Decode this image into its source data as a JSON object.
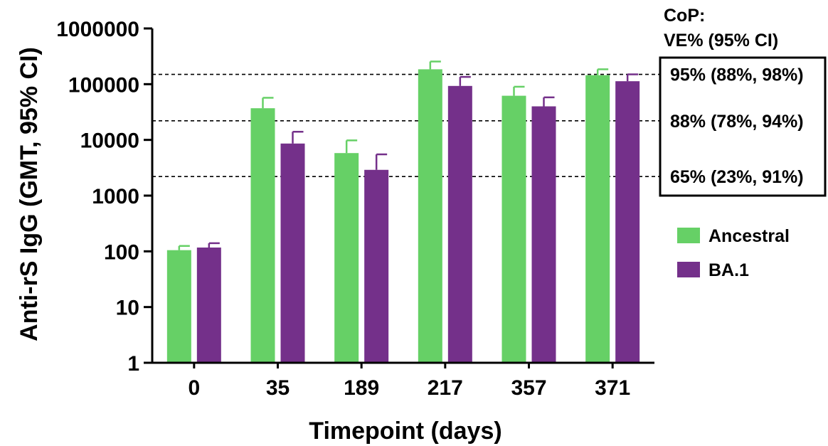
{
  "chart_data": {
    "type": "bar",
    "xlabel": "Timepoint (days)",
    "ylabel": "Anti-rS IgG (GMT, 95% CI)",
    "yscale": "log",
    "ylim": [
      1,
      1000000
    ],
    "yticks": [
      {
        "value": 1,
        "label": "1"
      },
      {
        "value": 10,
        "label": "10"
      },
      {
        "value": 100,
        "label": "100"
      },
      {
        "value": 1000,
        "label": "1000"
      },
      {
        "value": 10000,
        "label": "10000"
      },
      {
        "value": 100000,
        "label": "100000"
      },
      {
        "value": 1000000,
        "label": "1000000"
      }
    ],
    "categories": [
      "0",
      "35",
      "189",
      "217",
      "357",
      "371"
    ],
    "series": [
      {
        "name": "Ancestral",
        "color": "#66d066",
        "values": [
          105,
          37000,
          5800,
          185000,
          62000,
          145000
        ],
        "upper_ci": [
          125,
          57000,
          9800,
          255000,
          90000,
          185000
        ]
      },
      {
        "name": "BA.1",
        "color": "#74308a",
        "values": [
          117,
          8600,
          2900,
          93000,
          40000,
          113000
        ],
        "upper_ci": [
          140,
          14000,
          5500,
          135000,
          58000,
          150000
        ]
      }
    ],
    "reference_lines": [
      {
        "value": 150000,
        "label": "95% (88%, 98%)"
      },
      {
        "value": 22000,
        "label": "88% (78%, 94%)"
      },
      {
        "value": 2200,
        "label": "65% (23%, 91%)"
      }
    ],
    "cop_title_line1": "CoP:",
    "cop_title_line2": "VE% (95% CI)",
    "legend_position": "right"
  }
}
